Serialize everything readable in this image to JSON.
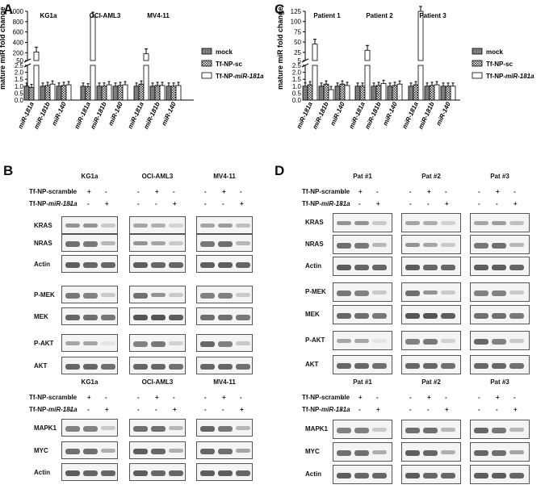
{
  "panels": {
    "A": "A",
    "B": "B",
    "C": "C",
    "D": "D"
  },
  "chart_data": [
    {
      "type": "bar",
      "title": "",
      "ylabel": "mature miR fold change",
      "xlabel": "",
      "group_labels": [
        "KG1a",
        "OCI-AML3",
        "MV4-11"
      ],
      "categories": [
        "miR-181a",
        "miR-181b",
        "miR-140",
        "miR-181a",
        "miR-181b",
        "miR-140",
        "miR-181a",
        "miR-181b",
        "miR-140"
      ],
      "ylim_lower": [
        0,
        2.5
      ],
      "ylim_upper": [
        50,
        1000
      ],
      "yticks_lower": [
        "0.0",
        "0.5",
        "1.0",
        "1.5",
        "2.0",
        "2.5"
      ],
      "yticks_upper": [
        "50",
        "200",
        "400",
        "600",
        "800",
        "1000"
      ],
      "legend": [
        "mock",
        "Tf-NP-sc",
        "Tf-NP-miR-181a"
      ],
      "legend_position": "right",
      "series": [
        {
          "name": "mock",
          "values": [
            1.0,
            1.0,
            1.0,
            1.0,
            1.0,
            1.0,
            1.0,
            1.0,
            1.0
          ]
        },
        {
          "name": "Tf-NP-sc",
          "values": [
            0.9,
            1.05,
            1.05,
            0.95,
            1.0,
            1.05,
            1.15,
            1.05,
            1.0
          ]
        },
        {
          "name": "Tf-NP-miR-181a",
          "values": [
            215,
            1.15,
            1.1,
            890,
            1.1,
            1.1,
            180,
            1.05,
            1.05
          ]
        }
      ]
    },
    {
      "type": "bar",
      "title": "",
      "ylabel": "mature miR fold change",
      "xlabel": "",
      "group_labels": [
        "Patient 1",
        "Patient 2",
        "Patient 3"
      ],
      "categories": [
        "miR-181a",
        "miR-181b",
        "miR-140",
        "miR-181a",
        "miR-181b",
        "miR-140",
        "miR-181a",
        "miR-181b",
        "miR-140"
      ],
      "ylim_lower": [
        0,
        2.5
      ],
      "ylim_upper": [
        5,
        125
      ],
      "yticks_lower": [
        "0.0",
        "0.5",
        "1.0",
        "1.5",
        "2.0",
        "2.5"
      ],
      "yticks_upper": [
        "5",
        "25",
        "50",
        "75",
        "100",
        "125"
      ],
      "legend": [
        "mock",
        "Tf-NP-sc",
        "Tf-NP-miR-181a"
      ],
      "legend_position": "right",
      "series": [
        {
          "name": "mock",
          "values": [
            1.0,
            1.0,
            1.0,
            1.0,
            1.0,
            1.0,
            1.0,
            1.0,
            1.0
          ]
        },
        {
          "name": "Tf-NP-sc",
          "values": [
            1.1,
            1.15,
            1.15,
            1.0,
            1.05,
            1.05,
            1.1,
            1.05,
            1.0
          ]
        },
        {
          "name": "Tf-NP-miR-181a",
          "values": [
            45,
            0.75,
            1.05,
            30,
            1.2,
            1.15,
            125,
            1.1,
            1.0
          ]
        }
      ]
    }
  ],
  "blotB": {
    "cell_lines": [
      "KG1a",
      "OCI-AML3",
      "MV4-11"
    ],
    "row_scramble": "Tf-NP-scramble",
    "row_mir_prefix": "Tf-NP-",
    "row_mir_italic": "miR-181a",
    "signs": [
      "-",
      "+",
      "-"
    ],
    "signs2": [
      "-",
      "-",
      "+"
    ],
    "labels": [
      "KRAS",
      "NRAS",
      "Actin",
      "P-MEK",
      "MEK",
      "P-AKT",
      "AKT"
    ],
    "lower_labels": [
      "MAPK1",
      "MYC",
      "Actin"
    ]
  },
  "blotD": {
    "patients": [
      "Pat #1",
      "Pat #2",
      "Pat #3"
    ],
    "row_scramble": "Tf-NP-scramble",
    "row_mir_prefix": "Tf-NP-",
    "row_mir_italic": "miR-181a",
    "signs": [
      "-",
      "+",
      "-"
    ],
    "signs2": [
      "-",
      "-",
      "+"
    ],
    "labels": [
      "KRAS",
      "NRAS",
      "Actin",
      "P-MEK",
      "MEK",
      "P-AKT",
      "AKT"
    ],
    "lower_labels": [
      "MAPK1",
      "MYC",
      "Actin"
    ]
  },
  "colors": {
    "mock": "#7a7a7a",
    "sc": "#ffffff",
    "mir": "#ffffff"
  }
}
